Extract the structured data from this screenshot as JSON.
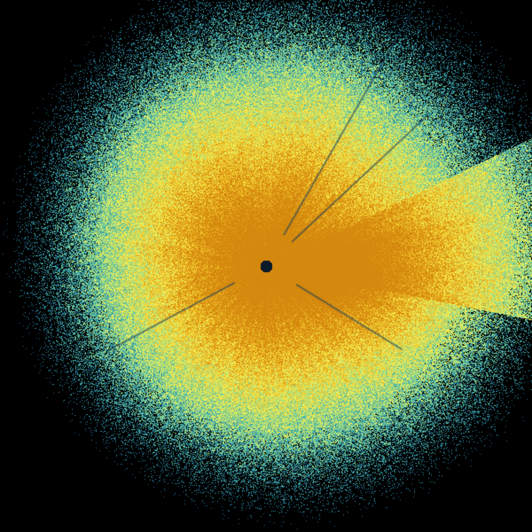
{
  "image": {
    "subject": "radar-reflectivity-sweep",
    "background_color": "#000000",
    "palette": [
      "#1f5f86",
      "#2b8fa3",
      "#4fb8a8",
      "#8fd68a",
      "#d8ec6a",
      "#f2e64a",
      "#f0c42a",
      "#e2a018",
      "#d4880e"
    ],
    "center_marker_color": "#0a1a2a"
  }
}
